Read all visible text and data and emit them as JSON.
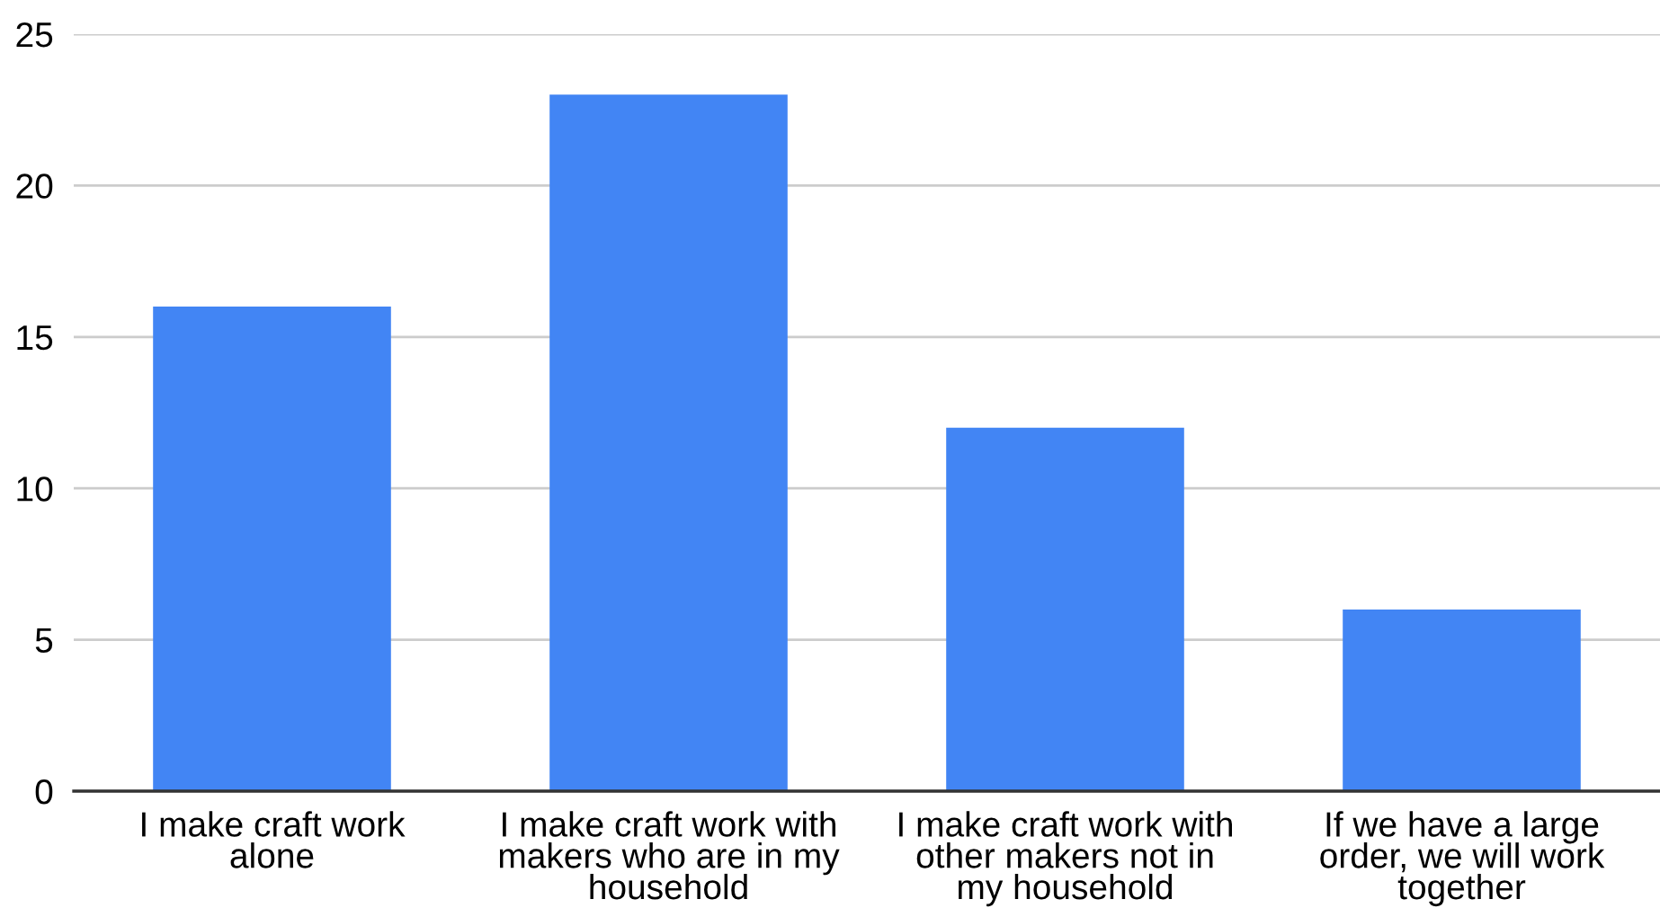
{
  "chart_data": {
    "type": "bar",
    "categories": [
      "I make craft work alone",
      "I make craft work with makers who are in my household",
      "I make craft work with other makers not in my household",
      "If we have a large order, we will work together"
    ],
    "values": [
      16,
      23,
      12,
      6
    ],
    "color": "#4285f4",
    "ylim": [
      0,
      25
    ],
    "yticks": [
      0,
      5,
      10,
      15,
      20,
      25
    ],
    "grid": "y"
  }
}
